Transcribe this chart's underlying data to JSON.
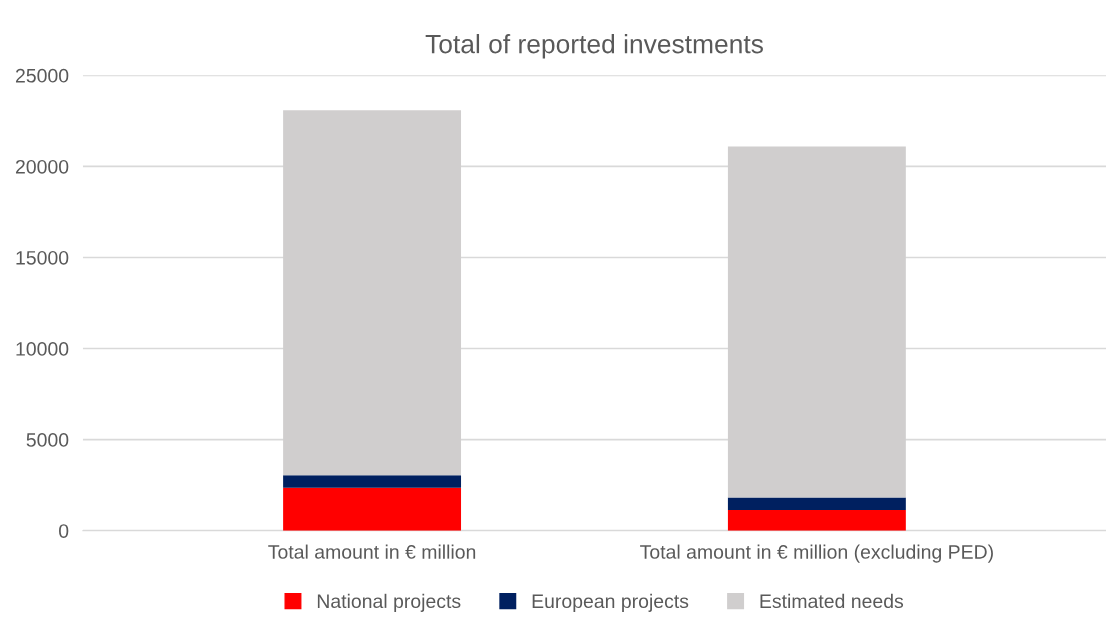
{
  "chart_data": {
    "type": "bar",
    "title": "Total of reported investments",
    "stacked": true,
    "categories": [
      "Total amount in € million",
      "Total amount in € million (excluding PED)"
    ],
    "series": [
      {
        "name": "National projects",
        "color": "#ff0000",
        "values": [
          2350,
          1140
        ]
      },
      {
        "name": "European projects",
        "color": "#002060",
        "values": [
          690,
          680
        ]
      },
      {
        "name": "Estimated needs",
        "color": "#d0cece",
        "values": [
          20040,
          19270
        ]
      }
    ],
    "ylim": [
      0,
      25000
    ],
    "yticks": [
      0,
      5000,
      10000,
      15000,
      20000,
      25000
    ],
    "grid": "y",
    "legend": "bottom"
  }
}
